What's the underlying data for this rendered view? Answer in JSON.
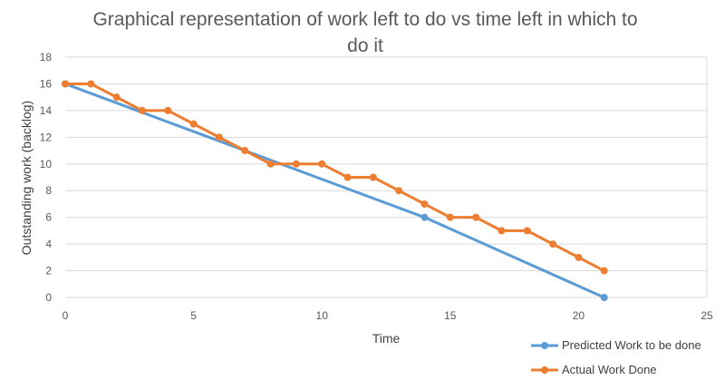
{
  "chart_data": {
    "type": "line",
    "title": "Graphical representation of work left to do vs time left in which to do it",
    "title_lines": [
      "Graphical representation of work left to do vs time left in which to",
      "do it"
    ],
    "xlabel": "Time",
    "ylabel": "Outstanding work (backlog)",
    "xlim": [
      0,
      25
    ],
    "ylim": [
      0,
      18
    ],
    "xticks": [
      0,
      5,
      10,
      15,
      20,
      25
    ],
    "yticks": [
      0,
      2,
      4,
      6,
      8,
      10,
      12,
      14,
      16,
      18
    ],
    "grid": "horizontal",
    "legend_position": "bottom-right",
    "series": [
      {
        "name": "Predicted Work to be done",
        "color": "#5b9bd5",
        "points": [
          [
            0,
            16
          ],
          [
            14,
            6
          ],
          [
            21,
            0
          ]
        ]
      },
      {
        "name": "Actual Work Done",
        "color": "#ed7d31",
        "points": [
          [
            0,
            16
          ],
          [
            1,
            16
          ],
          [
            2,
            15
          ],
          [
            3,
            14
          ],
          [
            4,
            14
          ],
          [
            5,
            13
          ],
          [
            6,
            12
          ],
          [
            7,
            11
          ],
          [
            8,
            10
          ],
          [
            9,
            10
          ],
          [
            10,
            10
          ],
          [
            11,
            9
          ],
          [
            12,
            9
          ],
          [
            13,
            8
          ],
          [
            14,
            7
          ],
          [
            15,
            6
          ],
          [
            16,
            6
          ],
          [
            17,
            5
          ],
          [
            18,
            5
          ],
          [
            19,
            4
          ],
          [
            20,
            3
          ],
          [
            21,
            2
          ]
        ]
      }
    ]
  }
}
